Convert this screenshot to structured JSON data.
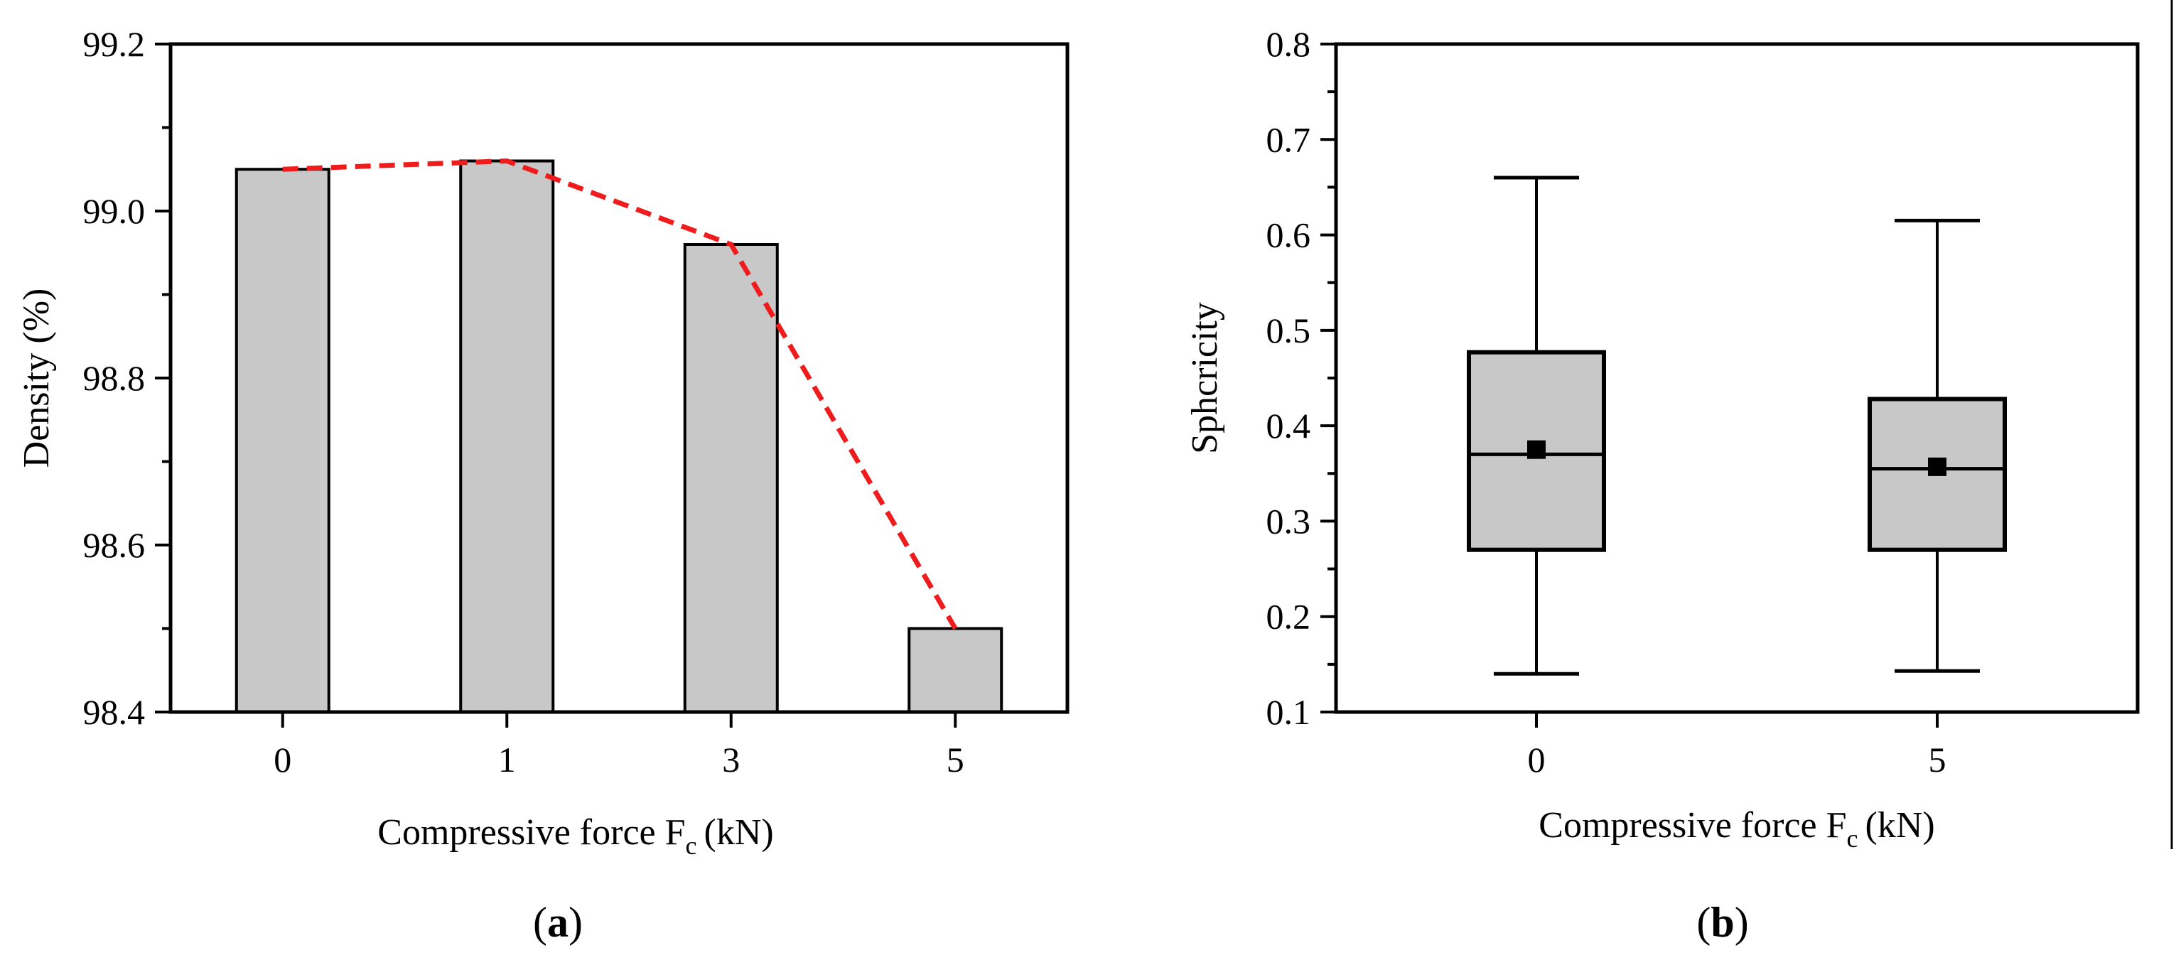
{
  "figure": {
    "panel_a_label": "a",
    "panel_b_label": "b"
  },
  "chart_data": [
    {
      "type": "bar",
      "title": "",
      "categories": [
        "0",
        "1",
        "3",
        "5"
      ],
      "values": [
        99.05,
        99.06,
        98.96,
        98.5
      ],
      "trend_line": {
        "color": "#ee1c1c",
        "values": [
          99.05,
          99.06,
          98.96,
          98.5
        ]
      },
      "bar_color": "#c8c8c8",
      "xlabel": {
        "main": "Compressive force F",
        "sub": "c",
        "unit": "(kN)"
      },
      "ylabel": "Density (%)",
      "ylim": [
        98.4,
        99.2
      ],
      "yticks": [
        "98.4",
        "98.6",
        "98.8",
        "99.0",
        "99.2"
      ],
      "grid": false
    },
    {
      "type": "box",
      "title": "",
      "categories": [
        "0",
        "5"
      ],
      "boxes": [
        {
          "name": "0",
          "whisker_low": 0.14,
          "q1": 0.27,
          "median": 0.37,
          "mean": 0.375,
          "q3": 0.477,
          "whisker_high": 0.66
        },
        {
          "name": "5",
          "whisker_low": 0.143,
          "q1": 0.27,
          "median": 0.355,
          "mean": 0.357,
          "q3": 0.428,
          "whisker_high": 0.615
        }
      ],
      "box_color": "#c8c8c8",
      "xlabel": {
        "main": "Compressive force F",
        "sub": "c",
        "unit": "(kN)"
      },
      "ylabel": "Sphcricity",
      "ylim": [
        0.1,
        0.8
      ],
      "yticks": [
        "0.1",
        "0.2",
        "0.3",
        "0.4",
        "0.5",
        "0.6",
        "0.7",
        "0.8"
      ],
      "grid": false
    }
  ]
}
